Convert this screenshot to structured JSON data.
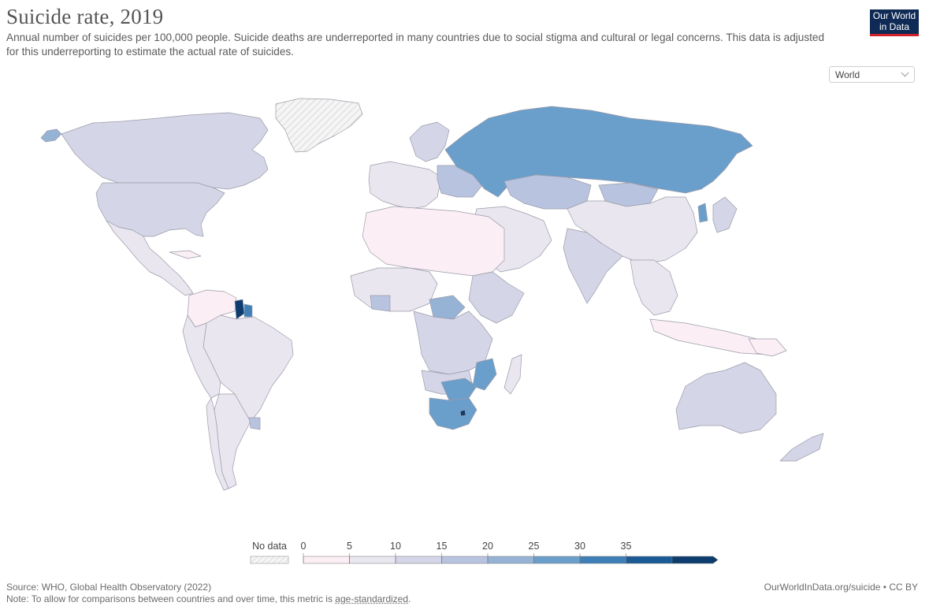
{
  "header": {
    "title": "Suicide rate, 2019",
    "subtitle": "Annual number of suicides per 100,000 people. Suicide deaths are underreported in many countries due to social stigma and cultural or legal concerns. This data is adjusted for this underreporting to estimate the actual rate of suicides.",
    "logo_line1": "Our World",
    "logo_line2": "in Data"
  },
  "controls": {
    "region_select_value": "World"
  },
  "legend": {
    "no_data_label": "No data",
    "ticks": [
      "0",
      "5",
      "10",
      "15",
      "20",
      "25",
      "30",
      "35"
    ],
    "colors": [
      "#fbeef4",
      "#e9e6f0",
      "#d4d6e8",
      "#b8c4df",
      "#96b3d6",
      "#6b9fcb",
      "#3f7fb7",
      "#1a5b96",
      "#0c3d6e"
    ]
  },
  "colors": {
    "bin_0_5": "#fbeef4",
    "bin_5_10": "#e9e6f0",
    "bin_10_15": "#d4d6e8",
    "bin_15_20": "#b8c4df",
    "bin_20_25": "#96b3d6",
    "bin_25_30": "#6b9fcb",
    "bin_30_35": "#3f7fb7",
    "bin_35_plus": "#0c3d6e",
    "no_data": "#f1f1f1"
  },
  "footer": {
    "source": "Source: WHO, Global Health Observatory (2022)",
    "note_prefix": "Note: To allow for comparisons between countries and over time, this metric is ",
    "note_link": "age-standardized",
    "note_suffix": ".",
    "credit": "OurWorldInData.org/suicide • CC BY"
  }
}
